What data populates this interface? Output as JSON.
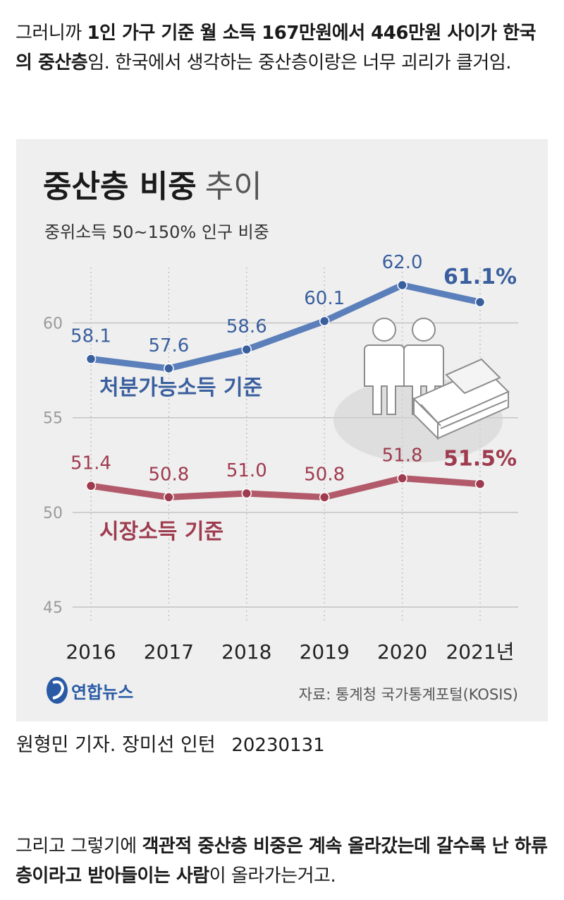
{
  "post": {
    "intro": [
      {
        "text": "그러니까 ",
        "bold": false
      },
      {
        "text": "1인 가구 기준 월 소득 167만원에서 446만원 사이가 한국의 중산층",
        "bold": true
      },
      {
        "text": "임. 한국에서 생각하는 중산층이랑은 너무 괴리가 클거임.",
        "bold": false
      }
    ],
    "outro": [
      {
        "text": "그리고 그렇기에 ",
        "bold": false
      },
      {
        "text": "객관적 중산층 비중은 계속 올라갔는데 갈수록 난 하류층이라고 받아들이는 사람",
        "bold": true
      },
      {
        "text": "이 올라가는거고.",
        "bold": false
      }
    ]
  },
  "credit": {
    "reporters": "원형민 기자. 장미선 인턴",
    "date": "20230131"
  },
  "chart_data": {
    "type": "line",
    "title": "중산층 비중",
    "title_suffix": "추이",
    "subtitle": "중위소득 50~150% 인구 비중",
    "categories": [
      "2016",
      "2017",
      "2018",
      "2019",
      "2020",
      "2021"
    ],
    "x_tick_labels": [
      "2016",
      "2017",
      "2018",
      "2019",
      "2020",
      "2021년"
    ],
    "y_ticks": [
      45,
      50,
      55,
      60
    ],
    "ylim": [
      45,
      63.3
    ],
    "grid": true,
    "series": [
      {
        "name": "처분가능소득 기준",
        "values": [
          58.1,
          57.6,
          58.6,
          60.1,
          62.0,
          61.1
        ],
        "labels": [
          "58.1",
          "57.6",
          "58.6",
          "60.1",
          "62.0",
          "61.1%"
        ],
        "color": "#5b7fba",
        "label_color": "#3a5f9e"
      },
      {
        "name": "시장소득 기준",
        "values": [
          51.4,
          50.8,
          51.0,
          50.8,
          51.8,
          51.5
        ],
        "labels": [
          "51.4",
          "50.8",
          "51.0",
          "50.8",
          "51.8",
          "51.5%"
        ],
        "color": "#b35a6a",
        "label_color": "#9e3b4e"
      }
    ],
    "source": "자료: 통계청 국가통계포털(KOSIS)",
    "logo_text": "연합뉴스",
    "colors": {
      "background": "#efefef",
      "grid": "#c4c4c4",
      "axis_text": "#9a9a9a"
    }
  }
}
